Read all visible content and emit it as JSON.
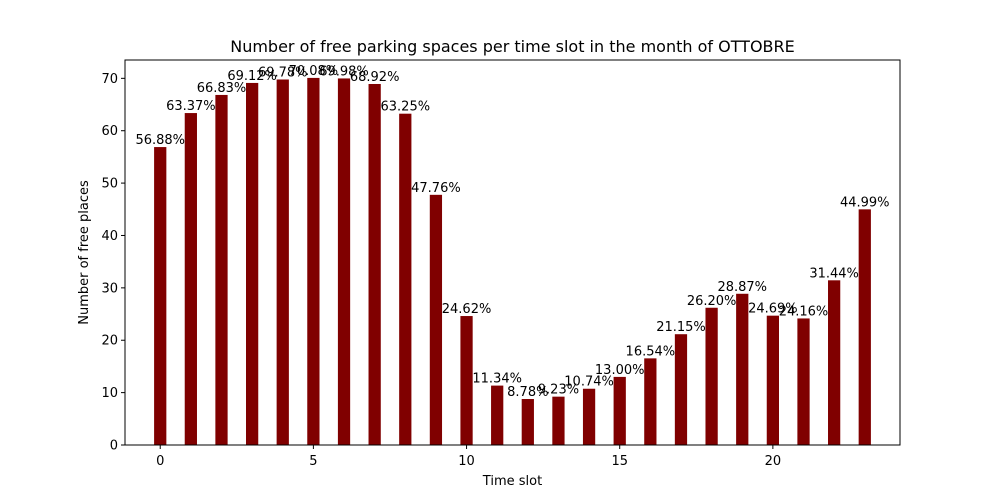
{
  "chart_data": {
    "type": "bar",
    "title": "Number of free parking spaces per time slot in the month of OTTOBRE",
    "xlabel": "Time slot",
    "ylabel": "Number of free places",
    "x": [
      0,
      1,
      2,
      3,
      4,
      5,
      6,
      7,
      8,
      9,
      10,
      11,
      12,
      13,
      14,
      15,
      16,
      17,
      18,
      19,
      20,
      21,
      22,
      23
    ],
    "values": [
      56.88,
      63.37,
      66.83,
      69.12,
      69.78,
      70.08,
      69.98,
      68.92,
      63.25,
      47.76,
      24.62,
      11.34,
      8.78,
      9.23,
      10.74,
      13.0,
      16.54,
      21.15,
      26.2,
      28.87,
      24.69,
      24.16,
      31.44,
      44.99
    ],
    "data_labels": [
      "56.88%",
      "63.37%",
      "66.83%",
      "69.12%",
      "69.78%",
      "70.08%",
      "69.98%",
      "68.92%",
      "63.25%",
      "47.76%",
      "24.62%",
      "11.34%",
      "8.78%",
      "9.23%",
      "10.74%",
      "13.00%",
      "16.54%",
      "21.15%",
      "26.20%",
      "28.87%",
      "24.69%",
      "24.16%",
      "31.44%",
      "44.99%"
    ],
    "xlim": [
      -1.15,
      24.15
    ],
    "ylim": [
      0,
      73.5
    ],
    "xticks": [
      0,
      5,
      10,
      15,
      20
    ],
    "yticks": [
      0,
      10,
      20,
      30,
      40,
      50,
      60,
      70
    ],
    "bar_color": "#800000",
    "grid": false,
    "legend": "none"
  }
}
